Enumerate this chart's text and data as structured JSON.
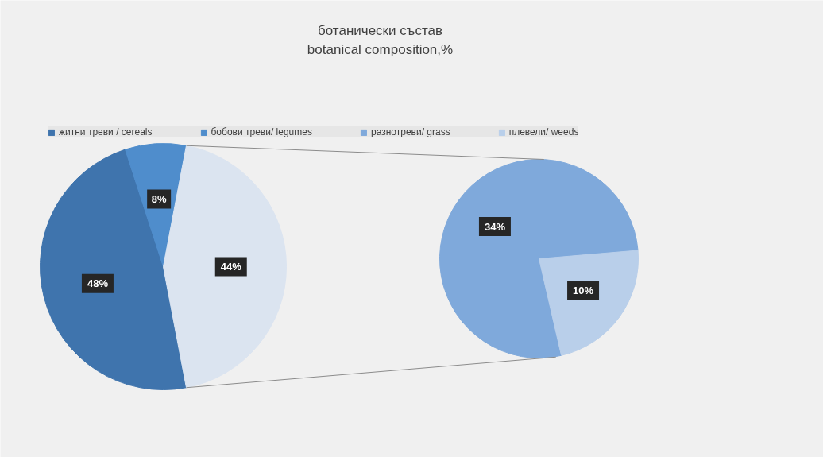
{
  "chart_data": [
    {
      "type": "pie",
      "title": "ботанически състав\nbotanical composition,%",
      "categories": [
        "житни треви / cereals",
        "бобови треви/ legumes",
        null
      ],
      "values": [
        48,
        8,
        44
      ],
      "colors": [
        "#3f74ad",
        "#4f8dcc",
        "#dbe4f0"
      ],
      "value_labels": [
        "48%",
        "8%",
        "44%"
      ],
      "legend": "top"
    },
    {
      "type": "pie",
      "categories": [
        "разнотреви/ grass",
        "плевели/ weeds"
      ],
      "values": [
        34,
        10
      ],
      "colors": [
        "#7fa9db",
        "#b9cfea"
      ],
      "value_labels": [
        "34%",
        "10%"
      ],
      "legend": "top"
    }
  ]
}
